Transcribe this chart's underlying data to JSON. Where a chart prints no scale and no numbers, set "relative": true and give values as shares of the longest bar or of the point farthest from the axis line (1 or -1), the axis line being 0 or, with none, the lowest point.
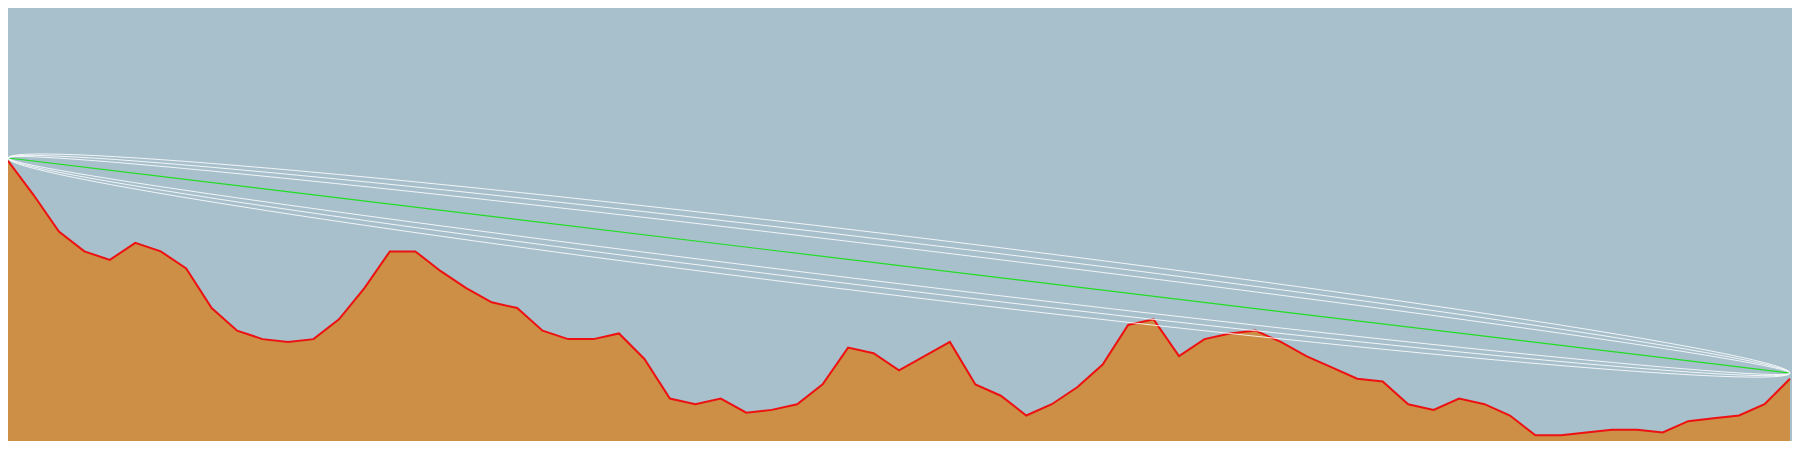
{
  "chart_data": {
    "type": "area",
    "relative": true,
    "legend": false,
    "categories": [
      null,
      null,
      null,
      null,
      null,
      null,
      null,
      null,
      null,
      null,
      null,
      null,
      null,
      null,
      null,
      null,
      null,
      null,
      null,
      null,
      null,
      null,
      null,
      null,
      null,
      null,
      null,
      null,
      null,
      null,
      null,
      null,
      null,
      null,
      null,
      null,
      null,
      null,
      null,
      null,
      null,
      null,
      null,
      null,
      null,
      null,
      null,
      null,
      null,
      null,
      null,
      null,
      null,
      null,
      null,
      null,
      null,
      null,
      null,
      null,
      null,
      null,
      null,
      null,
      null,
      null,
      null,
      null,
      null,
      null,
      null
    ],
    "series": [
      {
        "type": "area",
        "color": "#cc8f45",
        "values": [
          0.99,
          0.87,
          0.74,
          0.67,
          0.64,
          0.7,
          0.67,
          0.61,
          0.47,
          0.39,
          0.36,
          0.35,
          0.36,
          0.43,
          0.54,
          0.67,
          0.67,
          0.6,
          0.54,
          0.49,
          0.47,
          0.39,
          0.36,
          0.36,
          0.38,
          0.29,
          0.15,
          0.13,
          0.15,
          0.1,
          0.11,
          0.13,
          0.2,
          0.33,
          0.31,
          0.25,
          0.3,
          0.35,
          0.2,
          0.16,
          0.09,
          0.13,
          0.19,
          0.27,
          0.41,
          0.43,
          0.3,
          0.36,
          0.38,
          0.39,
          0.35,
          0.3,
          0.26,
          0.22,
          0.21,
          0.13,
          0.11,
          0.15,
          0.13,
          0.09,
          0.02,
          0.02,
          0.03,
          0.04,
          0.04,
          0.03,
          0.07,
          0.08,
          0.09,
          0.13,
          0.22
        ]
      },
      {
        "type": "line",
        "color": "#22dd22",
        "values": [
          1,
          null,
          null,
          null,
          null,
          null,
          null,
          null,
          null,
          null,
          null,
          null,
          null,
          null,
          null,
          null,
          null,
          null,
          null,
          null,
          null,
          null,
          null,
          null,
          null,
          null,
          null,
          null,
          null,
          null,
          null,
          null,
          null,
          null,
          null,
          null,
          null,
          null,
          null,
          null,
          null,
          null,
          null,
          null,
          null,
          null,
          null,
          null,
          null,
          null,
          null,
          null,
          null,
          null,
          null,
          null,
          null,
          null,
          null,
          null,
          null,
          null,
          null,
          null,
          null,
          null,
          null,
          null,
          null,
          null,
          0.24
        ]
      }
    ]
  }
}
